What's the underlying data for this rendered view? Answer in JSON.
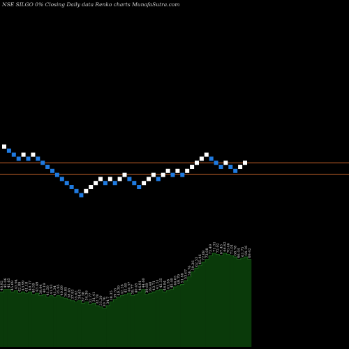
{
  "header": {
    "symbol": "NSE SILGO",
    "change": "0%",
    "description": "Closing Daily data  Renko  charts MunafaSutra.com"
  },
  "colors": {
    "background": "#000000",
    "up_brick": "#ffffff",
    "down_brick": "#1f7ae0",
    "reference_line": "#c8642a",
    "volume_fill": "#0a3a0a",
    "volume_edge": "#1d6b1d"
  },
  "chart_data": [
    {
      "type": "renko",
      "bricks": [
        {
          "dir": "up",
          "level": 0
        },
        {
          "dir": "down",
          "level": -1
        },
        {
          "dir": "down",
          "level": -2
        },
        {
          "dir": "down",
          "level": -3
        },
        {
          "dir": "up",
          "level": -2
        },
        {
          "dir": "down",
          "level": -3
        },
        {
          "dir": "up",
          "level": -2
        },
        {
          "dir": "down",
          "level": -3
        },
        {
          "dir": "down",
          "level": -4
        },
        {
          "dir": "down",
          "level": -5
        },
        {
          "dir": "down",
          "level": -6
        },
        {
          "dir": "down",
          "level": -7
        },
        {
          "dir": "down",
          "level": -8
        },
        {
          "dir": "down",
          "level": -9
        },
        {
          "dir": "down",
          "level": -10
        },
        {
          "dir": "down",
          "level": -11
        },
        {
          "dir": "down",
          "level": -12
        },
        {
          "dir": "up",
          "level": -11
        },
        {
          "dir": "up",
          "level": -10
        },
        {
          "dir": "up",
          "level": -9
        },
        {
          "dir": "up",
          "level": -8
        },
        {
          "dir": "down",
          "level": -9
        },
        {
          "dir": "up",
          "level": -8
        },
        {
          "dir": "down",
          "level": -9
        },
        {
          "dir": "up",
          "level": -8
        },
        {
          "dir": "up",
          "level": -7
        },
        {
          "dir": "down",
          "level": -8
        },
        {
          "dir": "down",
          "level": -9
        },
        {
          "dir": "down",
          "level": -10
        },
        {
          "dir": "up",
          "level": -9
        },
        {
          "dir": "up",
          "level": -8
        },
        {
          "dir": "up",
          "level": -7
        },
        {
          "dir": "down",
          "level": -8
        },
        {
          "dir": "up",
          "level": -7
        },
        {
          "dir": "up",
          "level": -6
        },
        {
          "dir": "down",
          "level": -7
        },
        {
          "dir": "up",
          "level": -6
        },
        {
          "dir": "down",
          "level": -7
        },
        {
          "dir": "up",
          "level": -6
        },
        {
          "dir": "up",
          "level": -5
        },
        {
          "dir": "up",
          "level": -4
        },
        {
          "dir": "up",
          "level": -3
        },
        {
          "dir": "up",
          "level": -2
        },
        {
          "dir": "down",
          "level": -3
        },
        {
          "dir": "down",
          "level": -4
        },
        {
          "dir": "down",
          "level": -5
        },
        {
          "dir": "up",
          "level": -4
        },
        {
          "dir": "down",
          "level": -5
        },
        {
          "dir": "down",
          "level": -6
        },
        {
          "dir": "up",
          "level": -5
        },
        {
          "dir": "up",
          "level": -4
        }
      ],
      "reference_lines": [
        -4,
        -6.8
      ]
    },
    {
      "type": "bar",
      "series": [
        {
          "values": [
            44,
            46,
            46,
            44,
            45,
            43,
            44,
            43,
            44,
            42,
            43,
            41,
            42,
            40,
            41,
            40,
            41,
            40,
            39,
            38,
            37,
            36,
            37,
            35,
            36,
            34,
            35,
            33,
            32,
            31,
            33,
            36,
            38,
            40,
            41,
            42,
            43,
            41,
            42,
            44,
            46,
            42,
            43,
            44,
            45,
            46,
            44,
            45,
            46,
            48,
            49,
            50,
            53,
            56,
            60,
            63,
            65,
            68,
            70,
            73,
            75,
            74,
            73,
            75,
            74,
            73,
            72,
            70,
            71,
            72,
            70
          ]
        }
      ],
      "labels": [
        "40.92",
        "45.06",
        "41.65",
        "45.69",
        "43.94",
        "42.89",
        "43.99",
        "41.18",
        "40.17",
        "40.59",
        "43.49",
        "39.94",
        "40.19",
        "41.59",
        "41.93",
        "41.34",
        "35.95",
        "40.09",
        "36.85",
        "38.45",
        "37.93",
        "35.62",
        "34.63",
        "37.38",
        "34.36",
        "32.77",
        "31.41",
        "32.78",
        "31.20",
        "30.76",
        "34.7",
        "38.35",
        "39.55",
        "40.39",
        "42.26",
        "41.40",
        "44.37",
        "39.77",
        "40.45",
        "46.91",
        "44.60",
        "39.69",
        "39.48",
        "43.71",
        "41.51",
        "42.35",
        "46.84",
        "41.58",
        "45.40",
        "44.65",
        "49.79",
        "51.88",
        "53.67",
        "56.76",
        "59.26",
        "62.53",
        "65.46",
        "72.08",
        "73.08",
        "73.49",
        "71.31",
        "72.02",
        "67.45",
        "66.62",
        "70.46",
        "71.01",
        "68.78",
        "66.44",
        "63.75",
        "64.16",
        "69.42"
      ],
      "ylim": [
        0,
        110
      ]
    }
  ]
}
